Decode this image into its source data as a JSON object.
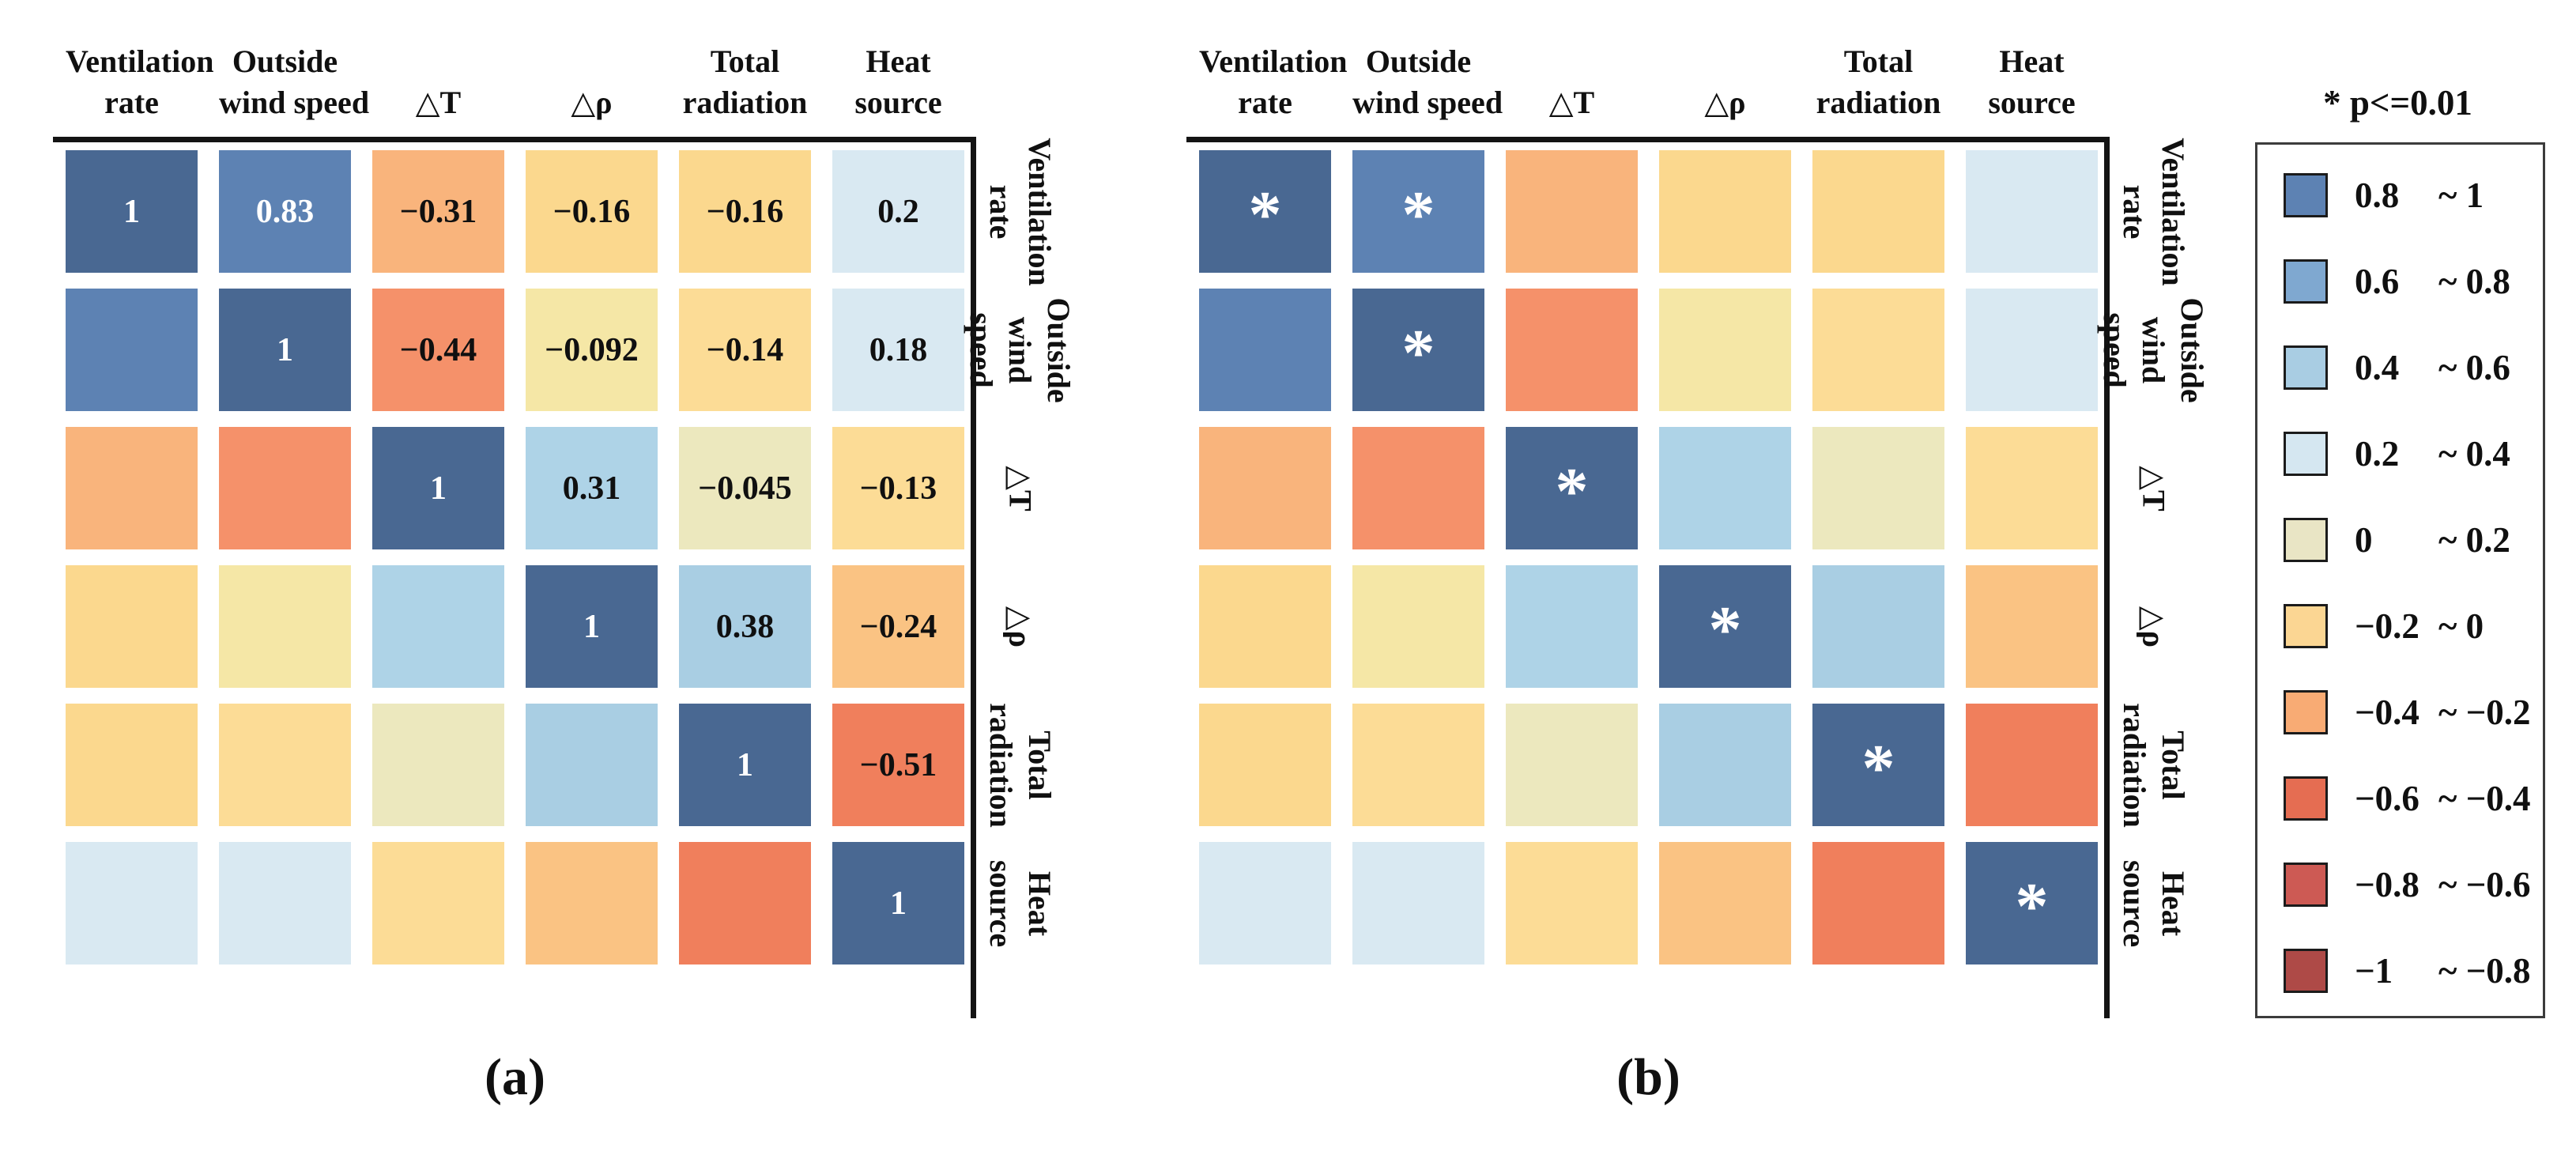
{
  "chart_data": {
    "type": "heatmap",
    "title": "",
    "variables": [
      "Ventilation rate",
      "Outside wind speed",
      "ΔT",
      "Δρ",
      "Total radiation",
      "Heat source"
    ],
    "matrix": [
      [
        1,
        0.83,
        -0.31,
        -0.16,
        -0.16,
        0.2
      ],
      [
        0.83,
        1,
        -0.44,
        -0.092,
        -0.14,
        0.18
      ],
      [
        -0.31,
        -0.44,
        1,
        0.31,
        -0.045,
        -0.13
      ],
      [
        -0.16,
        -0.092,
        0.31,
        1,
        0.38,
        -0.24
      ],
      [
        -0.16,
        -0.14,
        -0.045,
        0.38,
        1,
        -0.51
      ],
      [
        0.2,
        0.18,
        -0.13,
        -0.24,
        -0.51,
        1
      ]
    ],
    "panel_a_content": "correlation coefficient values shown on diagonal and upper triangle",
    "panel_b_content": "asterisk marks cells with p<=0.01",
    "significant_cells": [
      [
        0,
        0
      ],
      [
        0,
        1
      ],
      [
        1,
        1
      ],
      [
        2,
        2
      ],
      [
        3,
        3
      ],
      [
        4,
        4
      ],
      [
        5,
        5
      ]
    ],
    "color_bins": [
      {
        "range": [
          0.8,
          1
        ],
        "color": "#5d82b3"
      },
      {
        "range": [
          0.6,
          0.8
        ],
        "color": "#7fa8d0"
      },
      {
        "range": [
          0.4,
          0.6
        ],
        "color": "#a9cde3"
      },
      {
        "range": [
          0.2,
          0.4
        ],
        "color": "#d5e7f1"
      },
      {
        "range": [
          0,
          0.2
        ],
        "color": "#e9e5c5"
      },
      {
        "range": [
          -0.2,
          0
        ],
        "color": "#fbd693"
      },
      {
        "range": [
          -0.4,
          -0.2
        ],
        "color": "#f8ab74"
      },
      {
        "range": [
          -0.6,
          -0.4
        ],
        "color": "#e56d52"
      },
      {
        "range": [
          -0.8,
          -0.6
        ],
        "color": "#cd5a54"
      },
      {
        "range": [
          -1,
          -0.8
        ],
        "color": "#ae4a47"
      }
    ],
    "legend_position": "right"
  },
  "cell_colors": [
    [
      "#496892",
      "#5d82b3",
      "#f9b47c",
      "#fbd88e",
      "#fbd88e",
      "#d9e9f2"
    ],
    [
      "#5d82b3",
      "#496892",
      "#f5916a",
      "#f5e7a6",
      "#fcdc96",
      "#d9e9f2"
    ],
    [
      "#f9b47c",
      "#f5916a",
      "#496892",
      "#aed3e7",
      "#ece8be",
      "#fcdc96"
    ],
    [
      "#fbd88e",
      "#f5e7a6",
      "#aed3e7",
      "#496892",
      "#a9cee3",
      "#fac383"
    ],
    [
      "#fbd88e",
      "#fcdc96",
      "#ece8be",
      "#a9cee3",
      "#496892",
      "#f07f5c"
    ],
    [
      "#d9e9f2",
      "#d9e9f2",
      "#fcdc96",
      "#fac383",
      "#f07f5c",
      "#496892"
    ]
  ],
  "white_text_colors": [
    "#496892",
    "#5d82b3"
  ],
  "panel_a": {
    "caption": "(a)",
    "col_headers": [
      [
        "Ventilation",
        "rate"
      ],
      [
        "Outside",
        "wind speed"
      ],
      [
        "△T"
      ],
      [
        "△ρ"
      ],
      [
        "Total",
        "radiation"
      ],
      [
        "Heat",
        "source"
      ]
    ],
    "row_labels": [
      [
        "Ventilation",
        "rate"
      ],
      [
        "Outside",
        "wind",
        "speed"
      ],
      [
        "△T"
      ],
      [
        "△ρ"
      ],
      [
        "Total",
        "radiation"
      ],
      [
        "Heat",
        "source"
      ]
    ],
    "value_labels": [
      [
        "1",
        "0.83",
        "−0.31",
        "−0.16",
        "−0.16",
        "0.2"
      ],
      [
        "",
        "1",
        "−0.44",
        "−0.092",
        "−0.14",
        "0.18"
      ],
      [
        "",
        "",
        "1",
        "0.31",
        "−0.045",
        "−0.13"
      ],
      [
        "",
        "",
        "",
        "1",
        "0.38",
        "−0.24"
      ],
      [
        "",
        "",
        "",
        "",
        "1",
        "−0.51"
      ],
      [
        "",
        "",
        "",
        "",
        "",
        "1"
      ]
    ]
  },
  "panel_b": {
    "caption": "(b)",
    "col_headers": [
      [
        "Ventilation",
        "rate"
      ],
      [
        "Outside",
        "wind speed"
      ],
      [
        "△T"
      ],
      [
        "△ρ"
      ],
      [
        "Total",
        "radiation"
      ],
      [
        "Heat",
        "source"
      ]
    ],
    "row_labels": [
      [
        "Ventilation",
        "rate"
      ],
      [
        "Outside",
        "wind",
        "speed"
      ],
      [
        "△T"
      ],
      [
        "△ρ"
      ],
      [
        "Total",
        "radiation"
      ],
      [
        "Heat",
        "source"
      ]
    ],
    "star_char": "*",
    "stars": [
      [
        1,
        1,
        0,
        0,
        0,
        0
      ],
      [
        0,
        1,
        0,
        0,
        0,
        0
      ],
      [
        0,
        0,
        1,
        0,
        0,
        0
      ],
      [
        0,
        0,
        0,
        1,
        0,
        0
      ],
      [
        0,
        0,
        0,
        0,
        1,
        0
      ],
      [
        0,
        0,
        0,
        0,
        0,
        1
      ]
    ]
  },
  "legend": {
    "title": "* p<=0.01",
    "items": [
      {
        "from": "0.8",
        "to": "1",
        "color": "#5d82b3"
      },
      {
        "from": "0.6",
        "to": "0.8",
        "color": "#7fa8d0"
      },
      {
        "from": "0.4",
        "to": "0.6",
        "color": "#a9cde3"
      },
      {
        "from": "0.2",
        "to": "0.4",
        "color": "#d5e7f1"
      },
      {
        "from": "0",
        "to": "0.2",
        "color": "#e9e5c5"
      },
      {
        "from": "−0.2",
        "to": "0",
        "color": "#fbd693"
      },
      {
        "from": "−0.4",
        "to": "−0.2",
        "color": "#f8ab74"
      },
      {
        "from": "−0.6",
        "to": "−0.4",
        "color": "#e56d52"
      },
      {
        "from": "−0.8",
        "to": "−0.6",
        "color": "#cd5a54"
      },
      {
        "from": "−1",
        "to": "−0.8",
        "color": "#ae4a47"
      }
    ]
  }
}
